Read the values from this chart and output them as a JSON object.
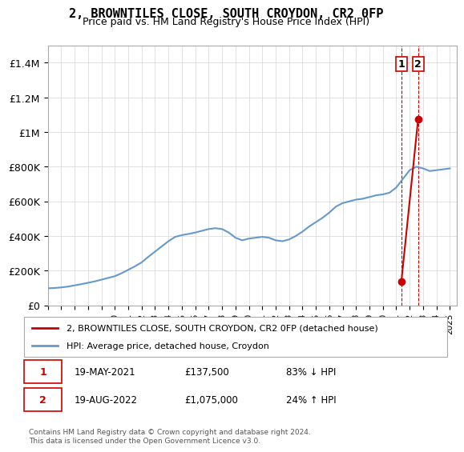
{
  "title": "2, BROWNTILES CLOSE, SOUTH CROYDON, CR2 0FP",
  "subtitle": "Price paid vs. HM Land Registry's House Price Index (HPI)",
  "legend_line1": "2, BROWNTILES CLOSE, SOUTH CROYDON, CR2 0FP (detached house)",
  "legend_line2": "HPI: Average price, detached house, Croydon",
  "transaction1_label": "1",
  "transaction1_date": "19-MAY-2021",
  "transaction1_price": "£137,500",
  "transaction1_hpi": "83% ↓ HPI",
  "transaction2_label": "2",
  "transaction2_date": "19-AUG-2022",
  "transaction2_price": "£1,075,000",
  "transaction2_hpi": "24% ↑ HPI",
  "footer": "Contains HM Land Registry data © Crown copyright and database right 2024.\nThis data is licensed under the Open Government Licence v3.0.",
  "hpi_color": "#6699cc",
  "price_color": "#cc0000",
  "marker1_color": "#cc0000",
  "marker2_color": "#cc0000",
  "ylim": [
    0,
    1500000
  ],
  "yticks": [
    0,
    200000,
    400000,
    600000,
    800000,
    1000000,
    1200000,
    1400000
  ],
  "ytick_labels": [
    "£0",
    "£200K",
    "£400K",
    "£600K",
    "£800K",
    "£1M",
    "£1.2M",
    "£1.4M"
  ],
  "xmin": 1995.0,
  "xmax": 2025.5,
  "transaction1_year": 2021.38,
  "transaction1_value": 137500,
  "transaction2_year": 2022.63,
  "transaction2_value": 1075000,
  "vline1_x": 2021.38,
  "vline2_x": 2022.63,
  "hpi_years": [
    1995,
    1995.5,
    1996,
    1996.5,
    1997,
    1997.5,
    1998,
    1998.5,
    1999,
    1999.5,
    2000,
    2000.5,
    2001,
    2001.5,
    2002,
    2002.5,
    2003,
    2003.5,
    2004,
    2004.5,
    2005,
    2005.5,
    2006,
    2006.5,
    2007,
    2007.5,
    2008,
    2008.5,
    2009,
    2009.5,
    2010,
    2010.5,
    2011,
    2011.5,
    2012,
    2012.5,
    2013,
    2013.5,
    2014,
    2014.5,
    2015,
    2015.5,
    2016,
    2016.5,
    2017,
    2017.5,
    2018,
    2018.5,
    2019,
    2019.5,
    2020,
    2020.5,
    2021,
    2021.5,
    2022,
    2022.5,
    2023,
    2023.5,
    2024,
    2024.5,
    2025
  ],
  "hpi_values": [
    98000,
    100000,
    103000,
    108000,
    115000,
    122000,
    130000,
    138000,
    148000,
    158000,
    168000,
    185000,
    205000,
    225000,
    248000,
    280000,
    310000,
    340000,
    370000,
    395000,
    405000,
    412000,
    420000,
    430000,
    440000,
    445000,
    440000,
    420000,
    390000,
    375000,
    385000,
    390000,
    395000,
    390000,
    375000,
    370000,
    380000,
    400000,
    425000,
    455000,
    480000,
    505000,
    535000,
    570000,
    590000,
    600000,
    610000,
    615000,
    625000,
    635000,
    640000,
    650000,
    680000,
    730000,
    780000,
    800000,
    790000,
    775000,
    780000,
    785000,
    790000
  ]
}
